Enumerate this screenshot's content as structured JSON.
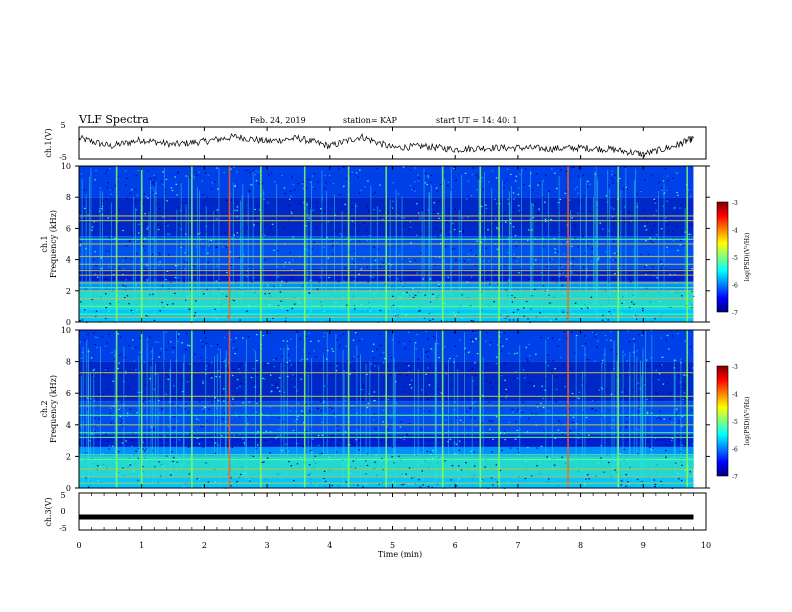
{
  "header": {
    "title": "VLF Spectra",
    "date": "Feb. 24, 2019",
    "station": "station= KAP",
    "start_ut": "start  UT =   14: 40: 1"
  },
  "colors": {
    "axes": "#000000",
    "colormap": [
      "#00007f",
      "#0000ff",
      "#0080ff",
      "#00ffff",
      "#80ff80",
      "#ffff00",
      "#ff8000",
      "#ff0000",
      "#7f0000"
    ]
  },
  "chart_data": [
    {
      "type": "line",
      "panel": "ch1-waveform",
      "ylabel": "ch.1(V)",
      "ylim": [
        -5,
        5
      ],
      "yticks": [
        "5",
        "-5"
      ],
      "x": [
        0,
        0.5,
        1,
        1.5,
        2,
        2.5,
        3,
        3.5,
        4,
        4.5,
        5,
        5.5,
        6,
        6.5,
        7,
        7.5,
        8,
        8.5,
        9,
        9.5,
        9.8
      ],
      "y": [
        1.5,
        -1.0,
        1.0,
        -0.5,
        0.5,
        2.0,
        0.5,
        1.5,
        -1.0,
        2.0,
        -1.5,
        -1.0,
        -2.0,
        -1.5,
        -1.5,
        -1.8,
        -1.5,
        -2.0,
        -3.5,
        -1.0,
        1.5
      ]
    },
    {
      "type": "heatmap",
      "panel": "ch1-spectrogram",
      "ylabel_lines": [
        "ch.1",
        "Frequency (kHz)"
      ],
      "ylim": [
        0,
        10
      ],
      "yticks": [
        "0",
        "2",
        "4",
        "6",
        "8",
        "10"
      ],
      "xlim": [
        0,
        9.8
      ],
      "lines_khz": [
        0.3,
        0.5,
        1.0,
        1.5,
        2.0,
        2.2,
        2.5,
        3.0,
        3.3,
        3.7,
        4.2,
        5.0,
        5.3,
        6.5,
        6.8
      ],
      "spikes_min": [
        0.6,
        1.0,
        1.8,
        2.4,
        2.9,
        3.6,
        4.3,
        4.9,
        5.8,
        6.4,
        6.7,
        7.8,
        8.6,
        9.7
      ],
      "colorbar": {
        "label": "log(PSD)(V²/Hz)",
        "range": [
          -7,
          -3
        ],
        "ticks": [
          "-3",
          "-4",
          "-5",
          "-6",
          "-7"
        ]
      }
    },
    {
      "type": "heatmap",
      "panel": "ch2-spectrogram",
      "ylabel_lines": [
        "ch.2",
        "Frequency (kHz)"
      ],
      "ylim": [
        0,
        10
      ],
      "yticks": [
        "0",
        "2",
        "4",
        "6",
        "8",
        "10"
      ],
      "xlim": [
        0,
        9.8
      ],
      "lines_khz": [
        0.3,
        0.7,
        1.2,
        1.8,
        2.1,
        3.2,
        3.5,
        4.0,
        4.6,
        5.2,
        5.8,
        7.3
      ],
      "spikes_min": [
        0.6,
        1.0,
        1.8,
        2.4,
        2.9,
        3.6,
        4.3,
        4.9,
        5.8,
        6.4,
        6.7,
        7.8,
        8.6,
        9.7
      ],
      "colorbar": {
        "label": "log(PSD)(V²/Hz)",
        "range": [
          -7,
          -3
        ],
        "ticks": [
          "-3",
          "-4",
          "-5",
          "-6",
          "-7"
        ]
      }
    },
    {
      "type": "line",
      "panel": "ch3-waveform",
      "ylabel": "ch.3(V)",
      "ylim": [
        -5,
        5
      ],
      "yticks": [
        "5",
        "0",
        "-5"
      ],
      "x": [
        0,
        9.8
      ],
      "y": [
        -1.5,
        -1.5
      ]
    }
  ],
  "xaxis": {
    "label": "Time (min)",
    "xlim": [
      0,
      10
    ],
    "ticks": [
      "0",
      "1",
      "2",
      "3",
      "4",
      "5",
      "6",
      "7",
      "8",
      "9",
      "10"
    ]
  }
}
